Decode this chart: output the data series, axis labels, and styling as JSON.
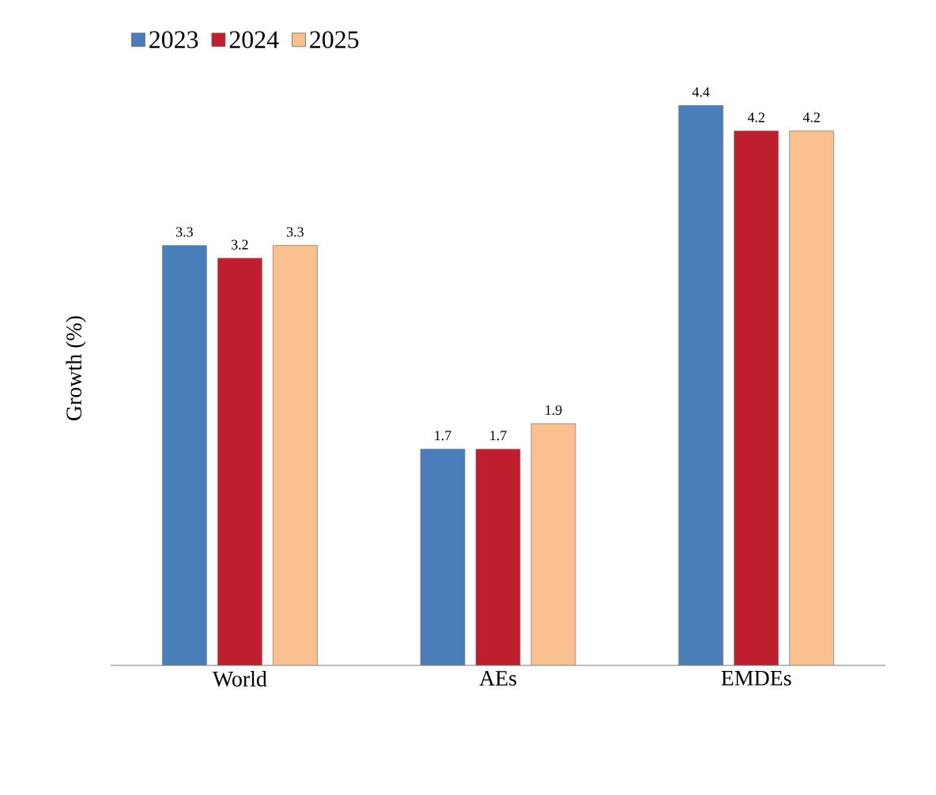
{
  "chart_data": {
    "type": "bar",
    "ylabel": "Growth (%)",
    "categories": [
      "World",
      "AEs",
      "EMDEs"
    ],
    "series": [
      {
        "name": "2023",
        "color": "#4a7ebb",
        "values": [
          3.3,
          1.7,
          4.4
        ]
      },
      {
        "name": "2024",
        "color": "#be1e2d",
        "values": [
          3.2,
          1.7,
          4.2
        ]
      },
      {
        "name": "2025",
        "color": "#fac090",
        "values": [
          3.3,
          1.9,
          4.2
        ]
      }
    ],
    "tick_labels": "x",
    "data_labels": true,
    "legend": "top left",
    "grid": false
  }
}
